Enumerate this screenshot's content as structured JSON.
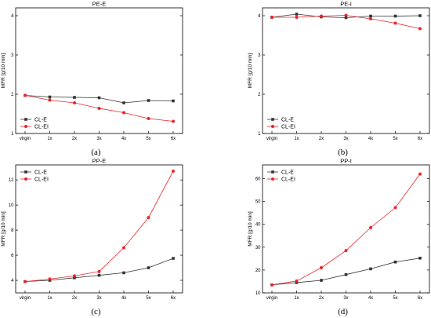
{
  "chart_data": [
    {
      "type": "line",
      "title": "PE-E",
      "caption": "(a)",
      "ylabel": "MFR [g/10 min]",
      "xlabel": "",
      "categories": [
        "virgin",
        "1x",
        "2x",
        "3x",
        "4x",
        "5x",
        "6x"
      ],
      "ylim": [
        1,
        4.2
      ],
      "yticks": [
        1,
        2,
        3,
        4
      ],
      "legend": "bottom-left",
      "series": [
        {
          "name": "CL-E",
          "color": "#333333",
          "marker": "square",
          "values": [
            1.97,
            1.93,
            1.92,
            1.91,
            1.78,
            1.84,
            1.83
          ]
        },
        {
          "name": "CL-EI",
          "color": "#e8262a",
          "marker": "circle",
          "values": [
            1.97,
            1.85,
            1.78,
            1.64,
            1.53,
            1.38,
            1.31
          ]
        }
      ]
    },
    {
      "type": "line",
      "title": "PE-I",
      "caption": "(b)",
      "ylabel": "MFR [g/10 min]",
      "xlabel": "",
      "categories": [
        "virgin",
        "1x",
        "2x",
        "3x",
        "4x",
        "5x",
        "6x"
      ],
      "ylim": [
        1,
        4.2
      ],
      "yticks": [
        1,
        2,
        3,
        4
      ],
      "legend": "bottom-left",
      "series": [
        {
          "name": "CL-E",
          "color": "#333333",
          "marker": "square",
          "values": [
            3.96,
            4.04,
            3.97,
            3.95,
            3.99,
            3.99,
            4.0
          ]
        },
        {
          "name": "CL-EI",
          "color": "#e8262a",
          "marker": "circle",
          "values": [
            3.96,
            3.96,
            3.99,
            4.01,
            3.92,
            3.81,
            3.67
          ]
        }
      ]
    },
    {
      "type": "line",
      "title": "PP-E",
      "caption": "(c)",
      "ylabel": "MFR [g/10 min]",
      "xlabel": "",
      "categories": [
        "virgin",
        "1x",
        "2x",
        "3x",
        "4x",
        "5x",
        "6x"
      ],
      "ylim": [
        3,
        13.2
      ],
      "yticks": [
        4,
        6,
        8,
        10,
        12
      ],
      "legend": "top-left",
      "series": [
        {
          "name": "CL-E",
          "color": "#333333",
          "marker": "square",
          "values": [
            3.9,
            4.0,
            4.2,
            4.4,
            4.6,
            5.0,
            5.75
          ]
        },
        {
          "name": "CL-EI",
          "color": "#e8262a",
          "marker": "circle",
          "values": [
            3.9,
            4.1,
            4.35,
            4.7,
            6.6,
            9.0,
            12.7
          ]
        }
      ]
    },
    {
      "type": "line",
      "title": "PP-I",
      "caption": "(d)",
      "ylabel": "MFR [g/10 min]",
      "xlabel": "",
      "categories": [
        "virgin",
        "1x",
        "2x",
        "3x",
        "4x",
        "5x",
        "6x"
      ],
      "ylim": [
        10,
        66
      ],
      "yticks": [
        10,
        20,
        30,
        40,
        50,
        60
      ],
      "legend": "top-left",
      "series": [
        {
          "name": "CL-E",
          "color": "#333333",
          "marker": "square",
          "values": [
            13.5,
            14.5,
            15.5,
            18.0,
            20.5,
            23.5,
            25.2
          ]
        },
        {
          "name": "CL-EI",
          "color": "#e8262a",
          "marker": "circle",
          "values": [
            13.5,
            15.2,
            21.0,
            28.5,
            38.5,
            47.3,
            62.0
          ]
        }
      ]
    }
  ]
}
